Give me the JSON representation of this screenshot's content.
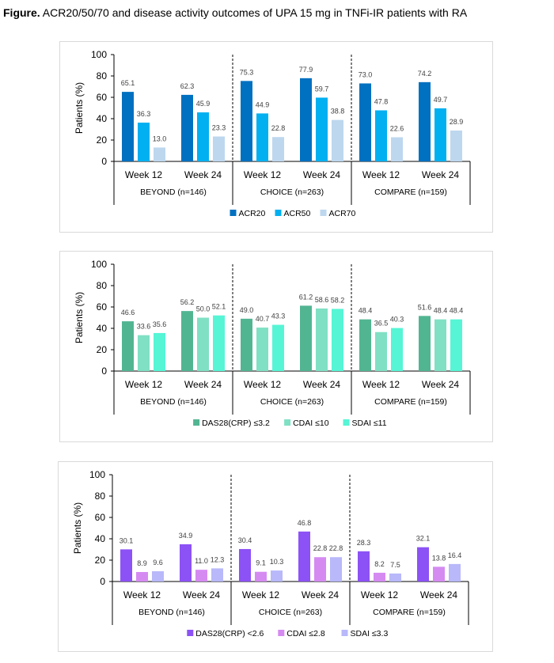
{
  "figure": {
    "title_bold": "Figure.",
    "title_rest": " ACR20/50/70 and disease activity outcomes of UPA 15 mg in TNFi-IR patients with RA"
  },
  "chart_data": [
    {
      "type": "bar",
      "title": "",
      "ylabel": "Patients (%)",
      "xlabel": "",
      "ylim": [
        0,
        100
      ],
      "yticks": [
        0,
        20,
        40,
        60,
        80,
        100
      ],
      "groups": [
        "BEYOND (n=146)",
        "CHOICE (n=263)",
        "COMPARE (n=159)"
      ],
      "categories": [
        "Week 12",
        "Week 24",
        "Week 12",
        "Week 24",
        "Week 12",
        "Week 24"
      ],
      "legend_position": "bottom",
      "series": [
        {
          "name": "ACR20",
          "color": "#0070c0",
          "values": [
            65.1,
            62.3,
            75.3,
            77.9,
            73.0,
            74.2
          ],
          "labels": [
            "65.1",
            "62.3",
            "75.3",
            "77.9",
            "73.0",
            "74.2"
          ]
        },
        {
          "name": "ACR50",
          "color": "#00b0f0",
          "values": [
            36.3,
            45.9,
            44.9,
            59.7,
            47.8,
            49.7
          ],
          "labels": [
            "36.3",
            "45.9",
            "44.9",
            "59.7",
            "47.8",
            "49.7"
          ]
        },
        {
          "name": "ACR70",
          "color": "#bdd7ee",
          "values": [
            13.0,
            23.3,
            22.8,
            38.8,
            22.6,
            28.9
          ],
          "labels": [
            "13.0",
            "23.3",
            "22.8",
            "38.8",
            "22.6",
            "28.9"
          ]
        }
      ]
    },
    {
      "type": "bar",
      "title": "",
      "ylabel": "Patients (%)",
      "xlabel": "",
      "ylim": [
        0,
        100
      ],
      "yticks": [
        0,
        20,
        40,
        60,
        80,
        100
      ],
      "groups": [
        "BEYOND (n=146)",
        "CHOICE (n=263)",
        "COMPARE (n=159)"
      ],
      "categories": [
        "Week 12",
        "Week 24",
        "Week 12",
        "Week 24",
        "Week 12",
        "Week 24"
      ],
      "legend_position": "bottom",
      "series": [
        {
          "name": "DAS28(CRP) ≤3.2",
          "color": "#52b592",
          "values": [
            46.6,
            56.2,
            49.0,
            61.2,
            48.4,
            51.6
          ],
          "labels": [
            "46.6",
            "56.2",
            "49.0",
            "61.2",
            "48.4",
            "51.6"
          ]
        },
        {
          "name": "CDAI ≤10",
          "color": "#80e0c4",
          "values": [
            33.6,
            50.0,
            40.7,
            58.6,
            36.5,
            48.4
          ],
          "labels": [
            "33.6",
            "50.0",
            "40.7",
            "58.6",
            "36.5",
            "48.4"
          ]
        },
        {
          "name": "SDAI ≤11",
          "color": "#55f5d5",
          "values": [
            35.6,
            52.1,
            43.3,
            58.2,
            40.3,
            48.4
          ],
          "labels": [
            "35.6",
            "52.1",
            "43.3",
            "58.2",
            "40.3",
            "48.4"
          ]
        }
      ]
    },
    {
      "type": "bar",
      "title": "",
      "ylabel": "Patients (%)",
      "xlabel": "",
      "ylim": [
        0,
        100
      ],
      "yticks": [
        0,
        20,
        40,
        60,
        80,
        100
      ],
      "groups": [
        "BEYOND (n=146)",
        "CHOICE (n=263)",
        "COMPARE (n=159)"
      ],
      "categories": [
        "Week 12",
        "Week 24",
        "Week 12",
        "Week 24",
        "Week 12",
        "Week 24"
      ],
      "legend_position": "bottom",
      "series": [
        {
          "name": "DAS28(CRP) <2.6",
          "color": "#8c52f5",
          "values": [
            30.1,
            34.9,
            30.4,
            46.8,
            28.3,
            32.1
          ],
          "labels": [
            "30.1",
            "34.9",
            "30.4",
            "46.8",
            "28.3",
            "32.1"
          ]
        },
        {
          "name": "CDAI ≤2.8",
          "color": "#d58af2",
          "values": [
            8.9,
            11.0,
            9.1,
            22.8,
            8.2,
            13.8
          ],
          "labels": [
            "8.9",
            "11.0",
            "9.1",
            "22.8",
            "8.2",
            "13.8"
          ]
        },
        {
          "name": "SDAI ≤3.3",
          "color": "#b8b8fa",
          "values": [
            9.6,
            12.3,
            10.3,
            22.8,
            7.5,
            16.4
          ],
          "labels": [
            "9.6",
            "12.3",
            "10.3",
            "22.8",
            "7.5",
            "16.4"
          ]
        }
      ]
    }
  ]
}
